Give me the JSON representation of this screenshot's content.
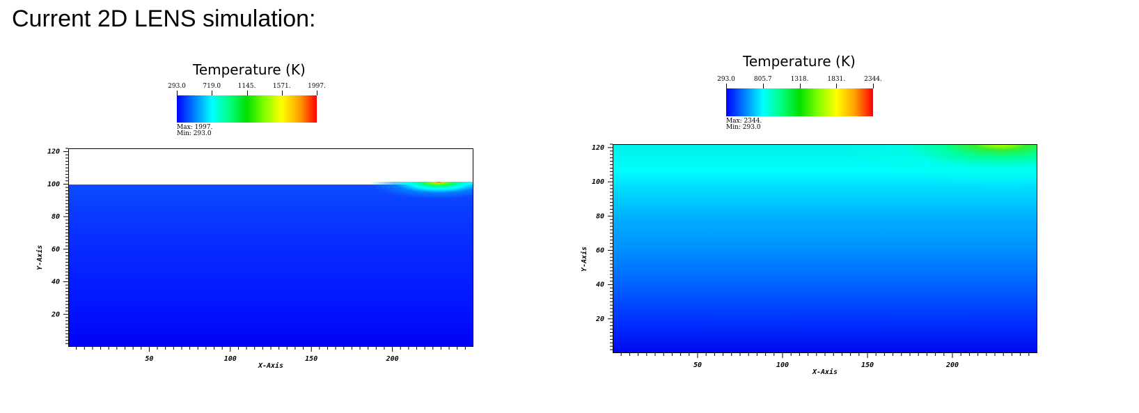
{
  "slide": {
    "title": "Current 2D LENS simulation:"
  },
  "colormap": [
    "#0000ff",
    "#0080ff",
    "#00ffff",
    "#00ff80",
    "#00e000",
    "#80ff00",
    "#ffff00",
    "#ffa000",
    "#ff0000"
  ],
  "chart_data": [
    {
      "type": "heatmap",
      "title": "Temperature (K)",
      "colorbar": {
        "ticks": [
          "293.0",
          "719.0",
          "1145.",
          "1571.",
          "1997."
        ],
        "max_label": "Max: 1997.",
        "min_label": "Min: 293.0",
        "min": 293.0,
        "max": 1997.0
      },
      "xlabel": "X-Axis",
      "ylabel": "Y-Axis",
      "xlim": [
        0,
        250
      ],
      "ylim": [
        0,
        122
      ],
      "xticks": [
        50,
        100,
        150,
        200
      ],
      "yticks": [
        20,
        40,
        60,
        80,
        100,
        120
      ],
      "domain_top": 100,
      "hot_spot": {
        "x": 228,
        "y": 100,
        "value": 1997
      }
    },
    {
      "type": "heatmap",
      "title": "Temperature (K)",
      "colorbar": {
        "ticks": [
          "293.0",
          "805.7",
          "1318.",
          "1831.",
          "2344."
        ],
        "max_label": "Max: 2344.",
        "min_label": "Min: 293.0",
        "min": 293.0,
        "max": 2344.0
      },
      "xlabel": "X-Axis",
      "ylabel": "Y-Axis",
      "xlim": [
        0,
        250
      ],
      "ylim": [
        0,
        122
      ],
      "xticks": [
        50,
        100,
        150,
        200
      ],
      "yticks": [
        20,
        40,
        60,
        80,
        100,
        120
      ],
      "domain_top": 122,
      "hot_spot": {
        "x": 228,
        "y": 122,
        "value": 2344
      }
    }
  ]
}
